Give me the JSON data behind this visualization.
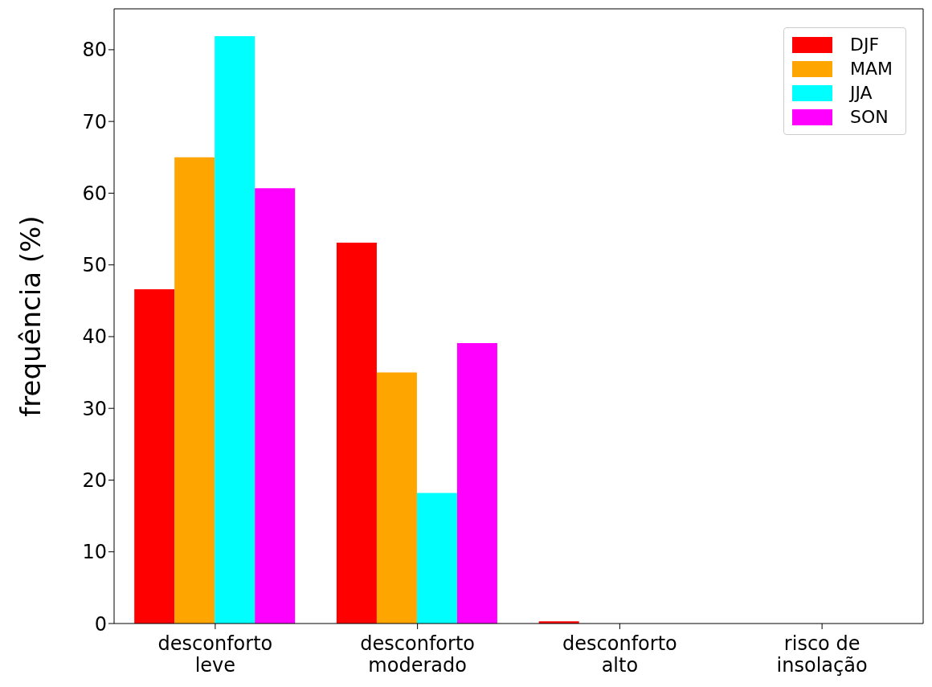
{
  "chart_data": {
    "type": "bar",
    "ylabel": "frequência (%)",
    "categories": [
      "desconforto leve",
      "desconforto moderado",
      "desconforto alto",
      "risco de insolação"
    ],
    "series": [
      {
        "name": "DJF",
        "color": "#ff0000",
        "values": [
          46.6,
          53.1,
          0.3,
          0
        ]
      },
      {
        "name": "MAM",
        "color": "#ffa500",
        "values": [
          65.0,
          35.0,
          0,
          0
        ]
      },
      {
        "name": "JJA",
        "color": "#00ffff",
        "values": [
          81.9,
          18.2,
          0,
          0
        ]
      },
      {
        "name": "SON",
        "color": "#ff00ff",
        "values": [
          60.7,
          39.1,
          0,
          0
        ]
      }
    ],
    "ylim": [
      0,
      85.7
    ],
    "yticks": [
      0,
      10,
      20,
      30,
      40,
      50,
      60,
      70,
      80
    ],
    "grid": false,
    "legend": "top right"
  }
}
